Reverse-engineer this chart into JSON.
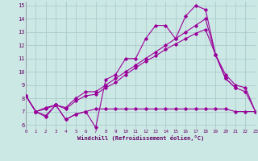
{
  "xlabel": "Windchill (Refroidissement éolien,°C)",
  "background_color": "#cce8e5",
  "grid_color": "#aacccc",
  "line_color": "#990099",
  "xlim": [
    0,
    23
  ],
  "ylim": [
    5.7,
    15.3
  ],
  "yticks": [
    6,
    7,
    8,
    9,
    10,
    11,
    12,
    13,
    14,
    15
  ],
  "xticks": [
    0,
    1,
    2,
    3,
    4,
    5,
    6,
    7,
    8,
    9,
    10,
    11,
    12,
    13,
    14,
    15,
    16,
    17,
    18,
    19,
    20,
    21,
    22,
    23
  ],
  "series": [
    {
      "x": [
        0,
        1,
        2,
        3,
        4,
        5,
        6,
        7,
        8,
        9,
        10,
        11,
        12,
        13,
        14,
        15,
        16,
        17,
        18,
        19,
        20,
        21
      ],
      "y": [
        8.2,
        7.0,
        6.6,
        7.5,
        6.4,
        6.8,
        7.0,
        5.8,
        9.4,
        9.8,
        11.0,
        11.0,
        12.5,
        13.5,
        13.5,
        12.5,
        14.2,
        15.0,
        14.7,
        11.3,
        9.5,
        8.8
      ]
    },
    {
      "x": [
        0,
        1,
        2,
        3,
        4,
        5,
        6,
        7,
        8,
        9,
        10,
        11,
        12,
        13,
        14,
        15,
        16,
        17,
        18,
        19,
        20,
        21,
        22,
        23
      ],
      "y": [
        8.2,
        7.0,
        6.7,
        7.5,
        6.4,
        6.8,
        7.0,
        7.2,
        7.2,
        7.2,
        7.2,
        7.2,
        7.2,
        7.2,
        7.2,
        7.2,
        7.2,
        7.2,
        7.2,
        7.2,
        7.2,
        7.0,
        7.0,
        7.0
      ]
    },
    {
      "x": [
        0,
        1,
        2,
        3,
        4,
        5,
        6,
        7,
        8,
        9,
        10,
        11,
        12,
        13,
        14,
        15,
        16,
        17,
        18,
        19,
        20,
        21,
        22,
        23
      ],
      "y": [
        8.2,
        7.0,
        7.3,
        7.5,
        7.2,
        7.8,
        8.2,
        8.3,
        8.8,
        9.2,
        9.8,
        10.3,
        10.8,
        11.2,
        11.7,
        12.1,
        12.5,
        12.9,
        13.2,
        11.3,
        9.8,
        9.0,
        8.8,
        7.0
      ]
    },
    {
      "x": [
        0,
        1,
        2,
        3,
        4,
        5,
        6,
        7,
        8,
        9,
        10,
        11,
        12,
        13,
        14,
        15,
        16,
        17,
        18,
        19,
        20,
        21,
        22,
        23
      ],
      "y": [
        8.2,
        7.0,
        7.2,
        7.5,
        7.3,
        8.0,
        8.5,
        8.5,
        9.0,
        9.5,
        10.0,
        10.5,
        11.0,
        11.5,
        12.0,
        12.5,
        13.0,
        13.5,
        14.0,
        11.3,
        9.5,
        8.8,
        8.5,
        7.0
      ]
    }
  ]
}
